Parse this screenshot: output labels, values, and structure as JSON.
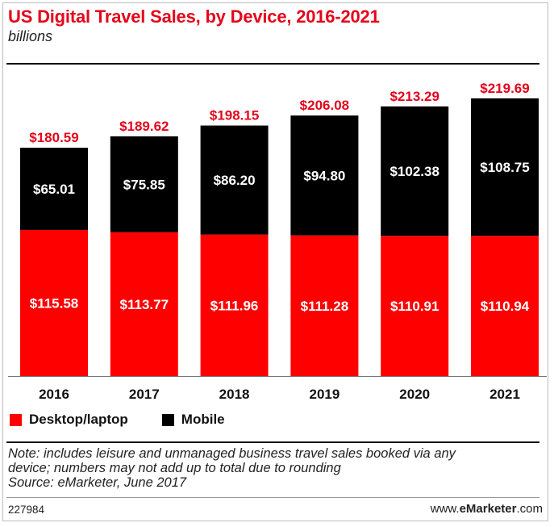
{
  "header": {
    "title": "US Digital Travel Sales, by Device, 2016-2021",
    "subtitle": "billions"
  },
  "chart_data": {
    "type": "bar",
    "stacked": true,
    "categories": [
      "2016",
      "2017",
      "2018",
      "2019",
      "2020",
      "2021"
    ],
    "series": [
      {
        "name": "Desktop/laptop",
        "color": "#ff0000",
        "values": [
          115.58,
          113.77,
          111.96,
          111.28,
          110.91,
          110.94
        ],
        "labels": [
          "$115.58",
          "$113.77",
          "$111.96",
          "$111.28",
          "$110.91",
          "$110.94"
        ]
      },
      {
        "name": "Mobile",
        "color": "#000000",
        "values": [
          65.01,
          75.85,
          86.2,
          94.8,
          102.38,
          108.75
        ],
        "labels": [
          "$65.01",
          "$75.85",
          "$86.20",
          "$94.80",
          "$102.38",
          "$108.75"
        ]
      }
    ],
    "totals": [
      180.59,
      189.62,
      198.15,
      206.08,
      213.29,
      219.69
    ],
    "total_labels": [
      "$180.59",
      "$189.62",
      "$198.15",
      "$206.08",
      "$213.29",
      "$219.69"
    ],
    "total_color": "#e4051c",
    "ylim": [
      0,
      240
    ],
    "grid": false,
    "legend_position": "bottom-left"
  },
  "legend": {
    "items": [
      {
        "label": "Desktop/laptop",
        "color": "#ff0000"
      },
      {
        "label": "Mobile",
        "color": "#000000"
      }
    ]
  },
  "footnote": {
    "lines": [
      "Note: includes leisure and unmanaged business travel sales booked via any",
      "device; numbers may not add up to total due to rounding",
      "Source: eMarketer, June 2017"
    ]
  },
  "footer": {
    "chart_id": "227984",
    "brand_prefix": "www.",
    "brand_name": "eMarketer",
    "brand_suffix": ".com"
  }
}
